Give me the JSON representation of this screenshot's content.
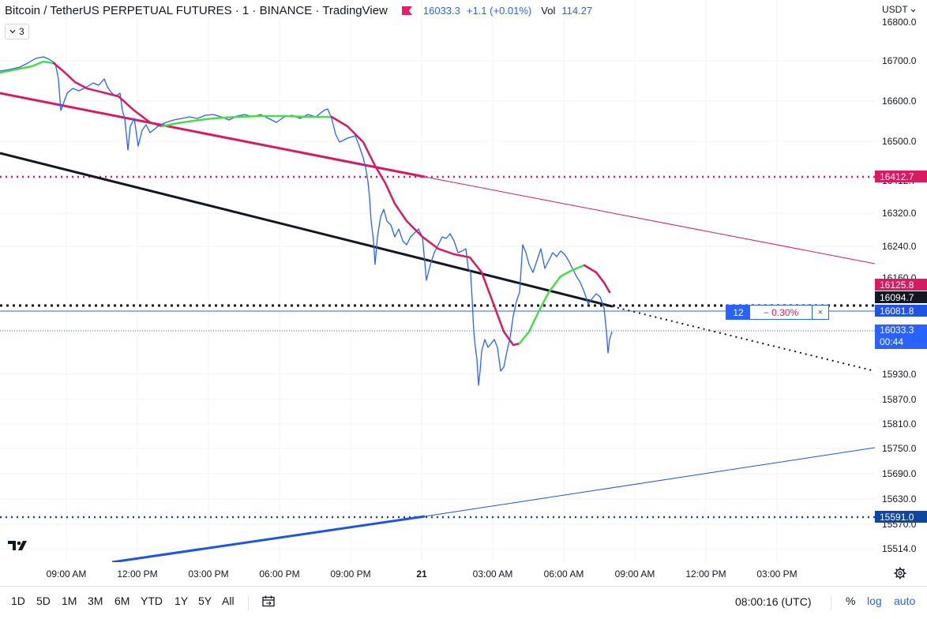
{
  "header": {
    "title": "Bitcoin / TetherUS PERPETUAL FUTURES · 1 · BINANCE · TradingView",
    "price": "16033.3",
    "change": "+1.1 (+0.01%)",
    "vol_label": "Vol",
    "vol_value": "114.27"
  },
  "indicator_badge": {
    "count": "3"
  },
  "currency": "USDT",
  "price_axis": {
    "ticks": [
      "16800.0",
      "16700.0",
      "16600.0",
      "16500.0",
      "16412.7",
      "16320.0",
      "16240.0",
      "16160.0",
      "15930.0",
      "15870.0",
      "15810.0",
      "15750.0",
      "15690.0",
      "15630.0",
      "15570.0",
      "15514.0"
    ]
  },
  "price_labels": {
    "upper_dotted": "16412.7",
    "ma": "16125.8",
    "black_dotted": "16094.7",
    "order": "16081.8",
    "lower_dotted": "15591.0"
  },
  "last_price": {
    "price": "16033.3",
    "countdown": "00:44"
  },
  "order": {
    "qty": "12",
    "pct": "− 0.30%",
    "close": "×"
  },
  "time_axis": {
    "ticks": [
      "09:00 AM",
      "12:00 PM",
      "03:00 PM",
      "06:00 PM",
      "09:00 PM",
      "21",
      "03:00 AM",
      "06:00 AM",
      "09:00 AM",
      "12:00 PM",
      "03:00 PM"
    ]
  },
  "colors": {
    "accent": "#2962ff",
    "price_line": "#2962ff",
    "ma_down": "#d81b60",
    "ma_up": "#4cda4c",
    "trend_black": "#131722",
    "trend_red": "#d81b60",
    "trend_blue": "#1e53e5"
  },
  "bottom_bar": {
    "timeframes": [
      "1D",
      "5D",
      "1M",
      "3M",
      "6M",
      "YTD",
      "1Y",
      "5Y",
      "All"
    ],
    "clock": "08:00:16 (UTC)",
    "percent": "%",
    "log": "log",
    "auto": "auto"
  },
  "icons": {
    "logo": "tradingview-logo-icon",
    "compare": "date-range-icon",
    "settings": "gear-icon",
    "flag": "flag-icon"
  }
}
